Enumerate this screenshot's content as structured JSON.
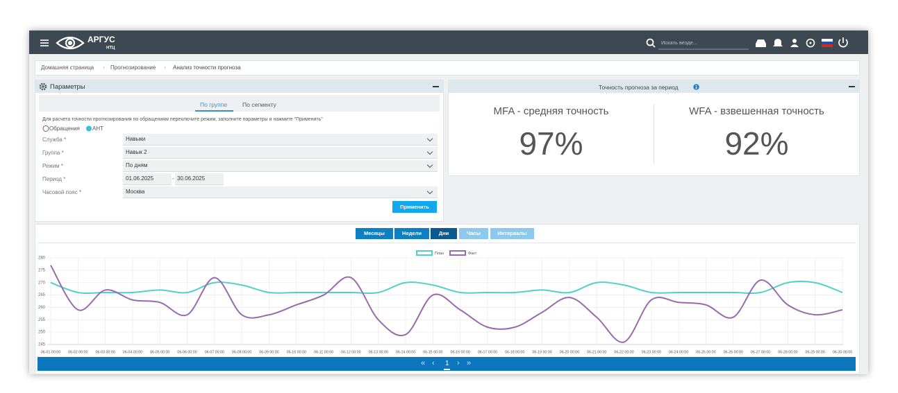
{
  "header": {
    "logo": "АРГУС",
    "logo_sub": "НТЦ",
    "search_placeholder": "Искать везде..."
  },
  "breadcrumb": [
    "Домашняя страница",
    "Прогнозирование",
    "Анализ точности прогноза"
  ],
  "parameters": {
    "title": "Параметры",
    "tabs": [
      "По группе",
      "По сегменту"
    ],
    "description": "Для расчета точности прогнозирования по обращениям переключите режим, заполните параметры и нажмите \"Применить\"",
    "radio": [
      "Обращения",
      "AHT"
    ],
    "fields": [
      {
        "label": "Служба *",
        "value": "Навыки"
      },
      {
        "label": "Группа *",
        "value": "Навык 2"
      },
      {
        "label": "Режим *",
        "value": "По дням"
      },
      {
        "label": "Период *",
        "from": "01.06.2025",
        "separator": "-",
        "to": "30.06.2025"
      },
      {
        "label": "Часовой пояс *",
        "value": "Москва"
      }
    ],
    "apply": "Применить"
  },
  "accuracy": {
    "title": "Точность прогноза за период",
    "metrics": [
      {
        "label": "MFA - средняя точность",
        "value": "97%"
      },
      {
        "label": "WFA - взвешенная точность",
        "value": "92%"
      }
    ]
  },
  "view_buttons": [
    "Месяцы",
    "Недели",
    "Дни",
    "Часы",
    "Интервалы"
  ],
  "chart_data": {
    "type": "line",
    "categories": [
      "06-01 00:00",
      "06-02 00:00",
      "06-03 00:00",
      "06-04 00:00",
      "06-05 00:00",
      "06-06 00:00",
      "06-07 00:00",
      "06-08 00:00",
      "06-09 00:00",
      "06-10 00:00",
      "06-11 00:00",
      "06-12 00:00",
      "06-13 00:00",
      "06-14 00:00",
      "06-15 00:00",
      "06-16 00:00",
      "06-17 00:00",
      "06-18 00:00",
      "06-19 00:00",
      "06-20 00:00",
      "06-21 00:00",
      "06-22 00:00",
      "06-23 00:00",
      "06-24 00:00",
      "06-25 00:00",
      "06-26 00:00",
      "06-27 00:00",
      "06-28 00:00",
      "06-29 00:00",
      "06-30 00:00"
    ],
    "series": [
      {
        "name": "План",
        "color": "#4fd0cc",
        "values": [
          270,
          266,
          266,
          266,
          267,
          266,
          270,
          269,
          266,
          266,
          266,
          266,
          266,
          270,
          269,
          266,
          266,
          266,
          267,
          266,
          270,
          269,
          266,
          266,
          266,
          266,
          266,
          270,
          270,
          266
        ]
      },
      {
        "name": "Факт",
        "color": "#9a69ad",
        "values": [
          277,
          259,
          267,
          263,
          262,
          257,
          272,
          257,
          257,
          261,
          265,
          272,
          255,
          249,
          265,
          259,
          252,
          252,
          258,
          264,
          256,
          246,
          263,
          262,
          261,
          256,
          271,
          261,
          257,
          259
        ]
      }
    ],
    "ylim": [
      245,
      280
    ],
    "yticks": [
      245,
      250,
      255,
      260,
      265,
      270,
      275,
      280
    ],
    "grid": true
  },
  "pagination": {
    "first": "«",
    "prev": "‹",
    "page": "1",
    "next": "›",
    "last": "»"
  }
}
